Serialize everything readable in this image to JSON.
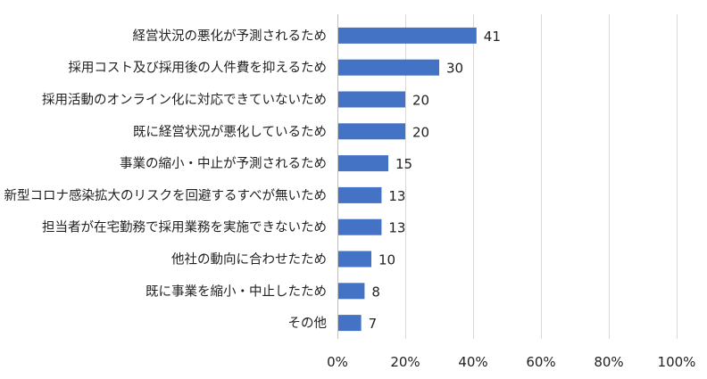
{
  "chart_data": {
    "type": "bar",
    "orientation": "horizontal",
    "categories": [
      "経営状況の悪化が予測されるため",
      "採用コスト及び採用後の人件費を抑えるため",
      "採用活動のオンライン化に対応できていないため",
      "既に経営状況が悪化しているため",
      "事業の縮小・中止が予測されるため",
      "新型コロナ感染拡大のリスクを回避するすべが無いため",
      "担当者が在宅勤務で採用業務を実施できないため",
      "他社の動向に合わせたため",
      "既に事業を縮小・中止したため",
      "その他"
    ],
    "values": [
      41,
      30,
      20,
      20,
      15,
      13,
      13,
      10,
      8,
      7
    ],
    "data_labels": [
      "41",
      "30",
      "20",
      "20",
      "15",
      "13",
      "13",
      "10",
      "8",
      "7"
    ],
    "xlim": [
      0,
      100
    ],
    "x_ticks": [
      0,
      20,
      40,
      60,
      80,
      100
    ],
    "x_tick_labels": [
      "0%",
      "20%",
      "40%",
      "60%",
      "80%",
      "100%"
    ],
    "grid": true,
    "bar_color": "#4472C4",
    "title": "",
    "xlabel": "",
    "ylabel": ""
  }
}
